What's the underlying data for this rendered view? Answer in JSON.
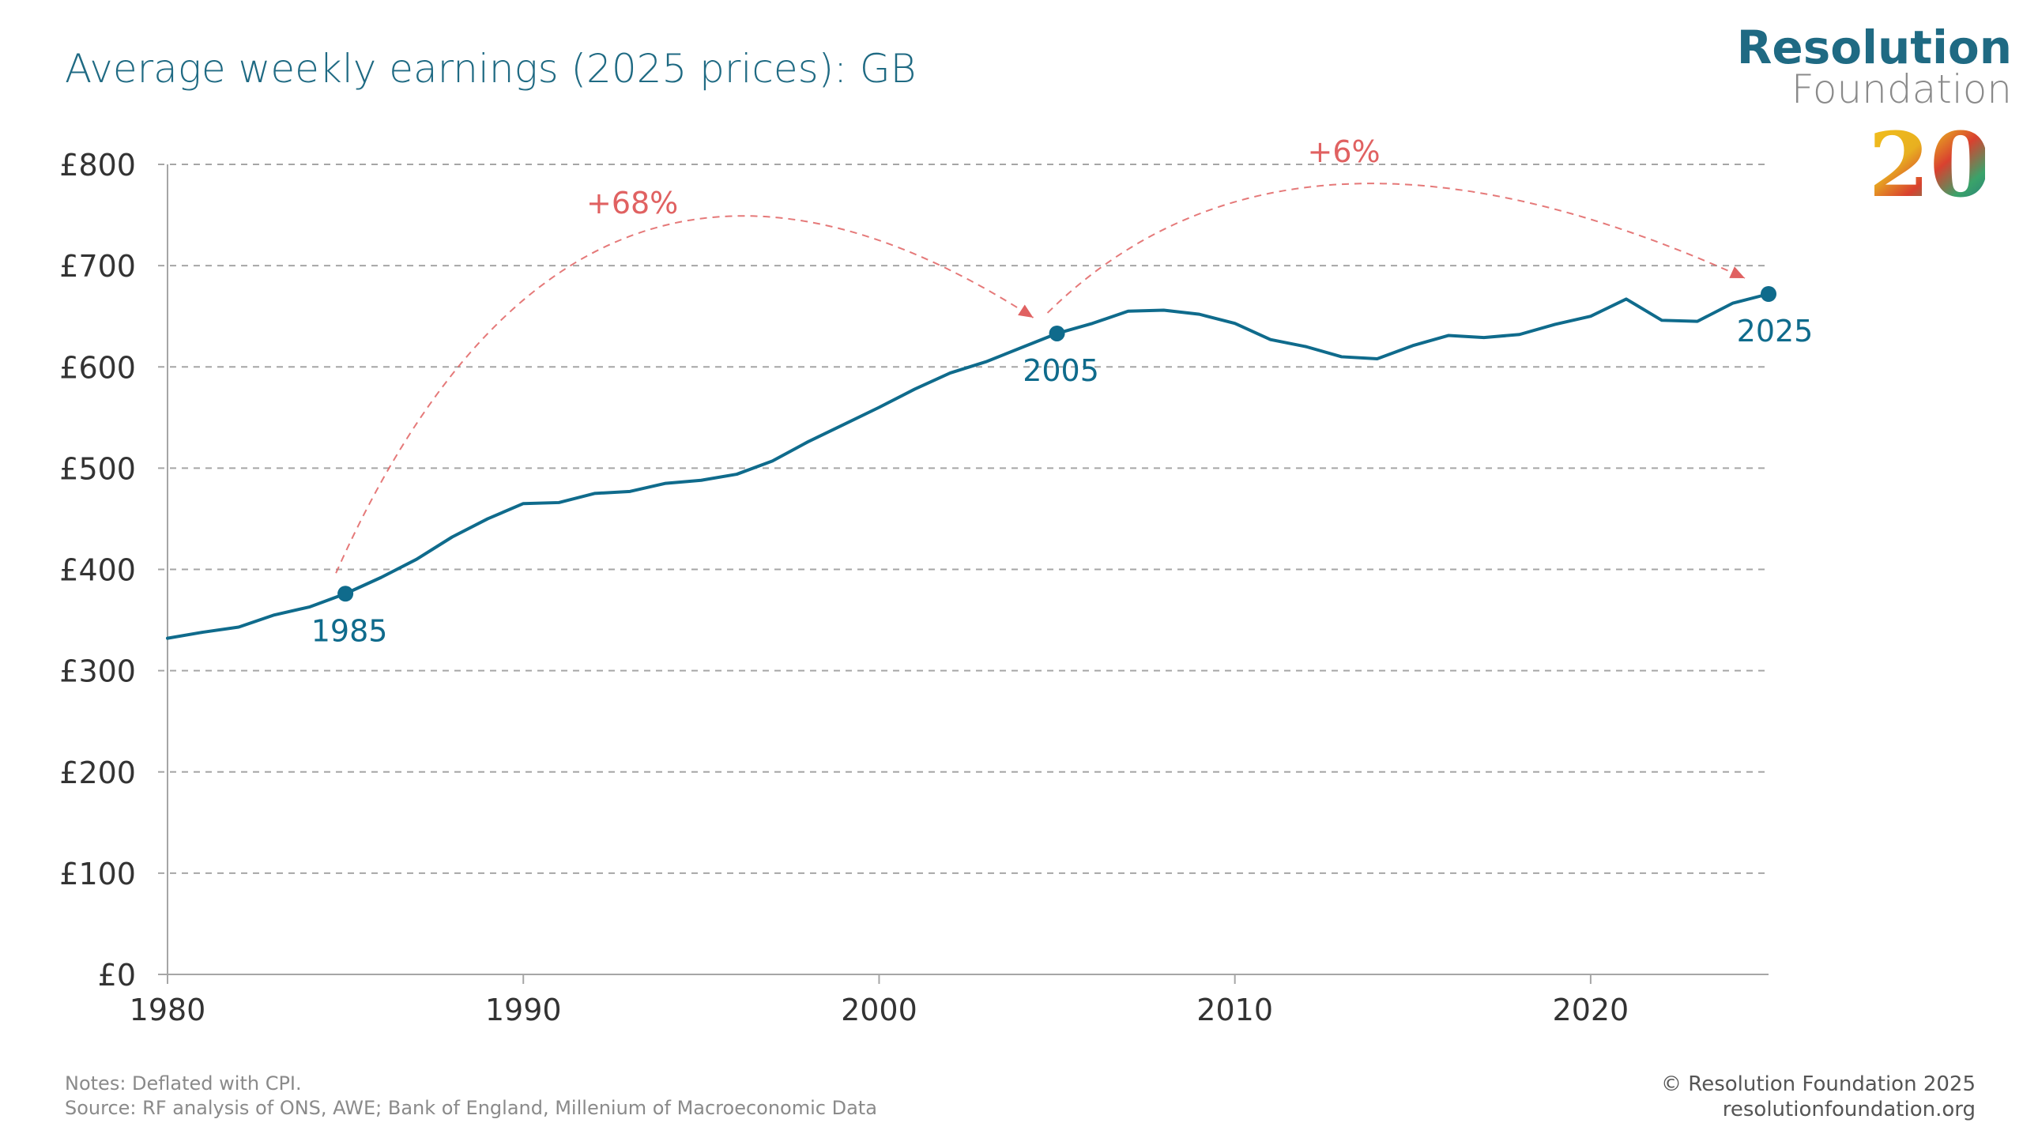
{
  "header": {
    "title": "Average weekly earnings (2025 prices): GB"
  },
  "logo": {
    "line1": "Resolution",
    "line2": "Foundation",
    "badge": "20"
  },
  "footer": {
    "notes": "Notes: Deflated with CPI.",
    "source": "Source: RF analysis of ONS, AWE; Bank of England, Millenium of Macroeconomic Data",
    "copyright": "© Resolution Foundation 2025",
    "website": "resolutionfoundation.org"
  },
  "colors": {
    "line": "#0f6b8c",
    "annotation": "#e06161",
    "grid": "#a6a6a6",
    "title": "#1f6a83"
  },
  "chart_data": {
    "type": "line",
    "title": "Average weekly earnings (2025 prices): GB",
    "xlabel": "",
    "ylabel": "",
    "xlim": [
      1980,
      2025
    ],
    "ylim": [
      0,
      800
    ],
    "grid": true,
    "x_ticks": [
      1980,
      1990,
      2000,
      2010,
      2020
    ],
    "y_ticks": [
      0,
      100,
      200,
      300,
      400,
      500,
      600,
      700,
      800
    ],
    "y_tick_labels": [
      "£0",
      "£100",
      "£200",
      "£300",
      "£400",
      "£500",
      "£600",
      "£700",
      "£800"
    ],
    "series": [
      {
        "x": [
          1980,
          1981,
          1982,
          1983,
          1984,
          1985,
          1986,
          1987,
          1988,
          1989,
          1990,
          1991,
          1992,
          1993,
          1994,
          1995,
          1996,
          1997,
          1998,
          1999,
          2000,
          2001,
          2002,
          2003,
          2004,
          2005,
          2006,
          2007,
          2008,
          2009,
          2010,
          2011,
          2012,
          2013,
          2014,
          2015,
          2016,
          2017,
          2018,
          2019,
          2020,
          2021,
          2022,
          2023,
          2024,
          2025
        ],
        "values": [
          332,
          338,
          343,
          355,
          363,
          376,
          392,
          410,
          432,
          450,
          465,
          466,
          475,
          477,
          485,
          488,
          494,
          507,
          526,
          543,
          560,
          578,
          594,
          605,
          619,
          633,
          643,
          655,
          656,
          652,
          643,
          627,
          620,
          610,
          608,
          621,
          631,
          629,
          632,
          642,
          650,
          667,
          646,
          645,
          663,
          672
        ]
      }
    ],
    "markers": [
      {
        "x": 1985,
        "y": 376,
        "label": "1985"
      },
      {
        "x": 2005,
        "y": 633,
        "label": "2005"
      },
      {
        "x": 2025,
        "y": 672,
        "label": "2025"
      }
    ],
    "annotations": [
      {
        "text": "+68%",
        "from_year": 1985,
        "to_year": 2005
      },
      {
        "text": "+6%",
        "from_year": 2005,
        "to_year": 2025
      }
    ]
  }
}
